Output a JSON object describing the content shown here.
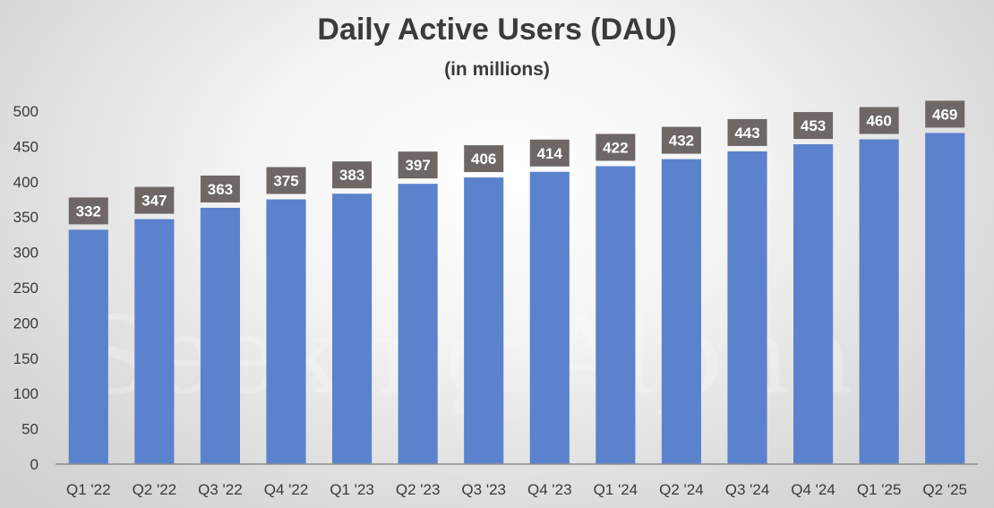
{
  "chart_data": {
    "type": "bar",
    "title": "Daily Active Users (DAU)",
    "subtitle": "(in millions)",
    "xlabel": "",
    "ylabel": "",
    "categories": [
      "Q1 '22",
      "Q2 '22",
      "Q3 '22",
      "Q4 '22",
      "Q1 '23",
      "Q2 '23",
      "Q3 '23",
      "Q4 '23",
      "Q1 '24",
      "Q2 '24",
      "Q3 '24",
      "Q4 '24",
      "Q1 '25",
      "Q2 '25"
    ],
    "values": [
      332,
      347,
      363,
      375,
      383,
      397,
      406,
      414,
      422,
      432,
      443,
      453,
      460,
      469
    ],
    "ylim": [
      0,
      500
    ],
    "yticks": [
      0,
      50,
      100,
      150,
      200,
      250,
      300,
      350,
      400,
      450,
      500
    ],
    "grid": false,
    "legend": "none",
    "bar_color": "#5b82cc",
    "label_bg_color": "#6e6766",
    "label_text_color": "#ffffff"
  },
  "watermark": "Seeking Alpha"
}
